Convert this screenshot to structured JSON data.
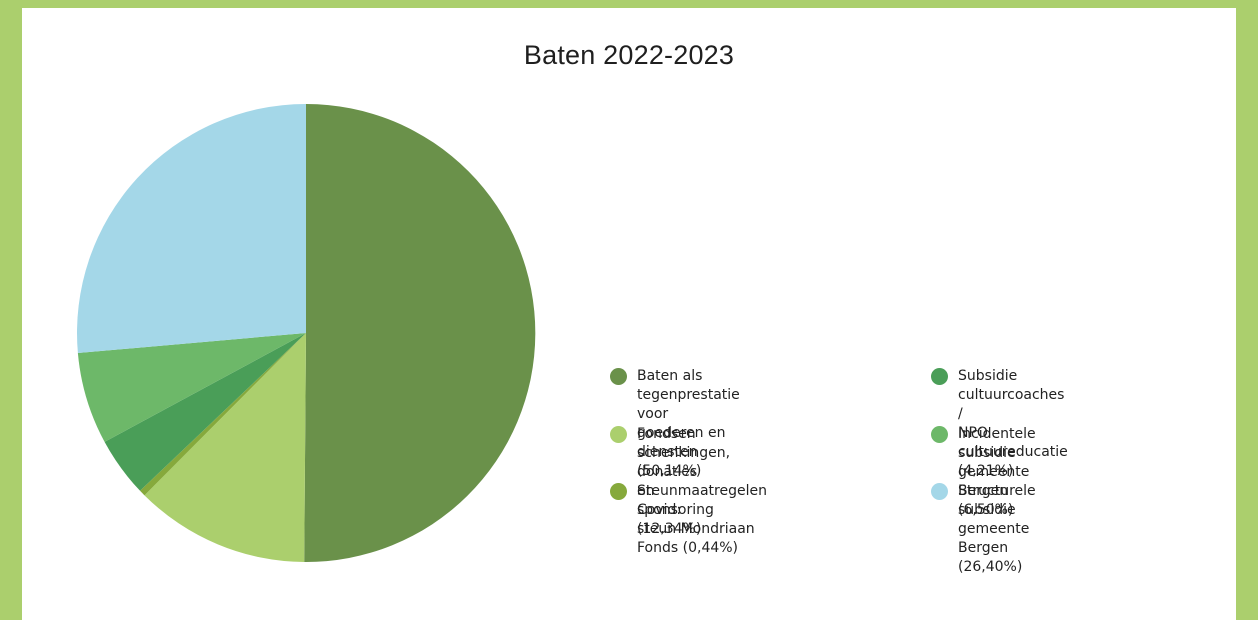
{
  "chart_data": {
    "type": "pie",
    "title": "Baten 2022-2023",
    "slices": [
      {
        "label": "Baten als tegenprestatie voor\ngoederen en diensten (50,14%)",
        "value": 50.14,
        "color": "#6a914a"
      },
      {
        "label": "Fondsen schenkingen, donaties\nen sponsoring (12,34%)",
        "value": 12.34,
        "color": "#abcf6d"
      },
      {
        "label": "Steunmaatregelen Covid:\nsteun Mondriaan Fonds (0,44%)",
        "value": 0.44,
        "color": "#86a93c"
      },
      {
        "label": "Subsidie cultuurcoaches /\nNPO cultuureducatie (4,21%)",
        "value": 4.21,
        "color": "#4a9e58"
      },
      {
        "label": "Incidentele subsidie\ngemeente Bergen (6,50%)",
        "value": 6.5,
        "color": "#6db869"
      },
      {
        "label": "Structurele subsidie\ngemeente Bergen (26,40%)",
        "value": 26.4,
        "color": "#a4d7e8"
      }
    ],
    "legend_position": "right"
  }
}
